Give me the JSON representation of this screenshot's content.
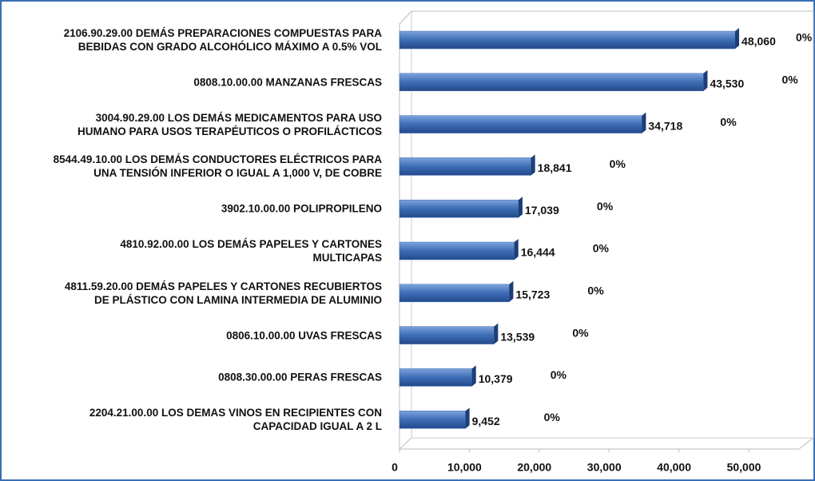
{
  "chart_data": {
    "type": "bar",
    "orientation": "horizontal",
    "categories": [
      "2106.90.29.00 DEMÁS PREPARACIONES COMPUESTAS PARA\nBEBIDAS CON GRADO ALCOHÓLICO MÁXIMO A 0.5% VOL",
      "0808.10.00.00 MANZANAS FRESCAS",
      "3004.90.29.00 LOS DEMÁS MEDICAMENTOS PARA USO\nHUMANO PARA USOS TERAPÉUTICOS O PROFILÁCTICOS",
      "8544.49.10.00 LOS DEMÁS CONDUCTORES ELÉCTRICOS PARA\nUNA TENSIÓN INFERIOR O IGUAL A 1,000 V, DE COBRE",
      "3902.10.00.00 POLIPROPILENO",
      "4810.92.00.00 LOS DEMÁS PAPELES Y CARTONES\nMULTICAPAS",
      "4811.59.20.00 DEMÁS PAPELES Y CARTONES RECUBIERTOS\nDE PLÁSTICO CON LAMINA INTERMEDIA DE ALUMINIO",
      "0806.10.00.00 UVAS FRESCAS",
      "0808.30.00.00 PERAS FRESCAS",
      "2204.21.00.00 LOS DEMAS VINOS EN RECIPIENTES CON\nCAPACIDAD IGUAL A 2 L"
    ],
    "values": [
      48060,
      43530,
      34718,
      18841,
      17039,
      16444,
      15723,
      13539,
      10379,
      9452
    ],
    "value_labels": [
      "48,060",
      "43,530",
      "34,718",
      "18,841",
      "17,039",
      "16,444",
      "15,723",
      "13,539",
      "10,379",
      "9,452"
    ],
    "annotations": [
      "0%",
      "0%",
      "0%",
      "0%",
      "0%",
      "0%",
      "0%",
      "0%",
      "0%",
      "0%"
    ],
    "color": "#3d6db5",
    "xlim": [
      0,
      50000
    ],
    "xticks": [
      0,
      {
        "value": 10000,
        "label": "10,000"
      },
      {
        "value": 20000,
        "label": "20,000"
      },
      {
        "value": 30000,
        "label": "30,000"
      },
      {
        "value": 40000,
        "label": "40,000"
      },
      {
        "value": 50000,
        "label": "50,000"
      }
    ]
  }
}
